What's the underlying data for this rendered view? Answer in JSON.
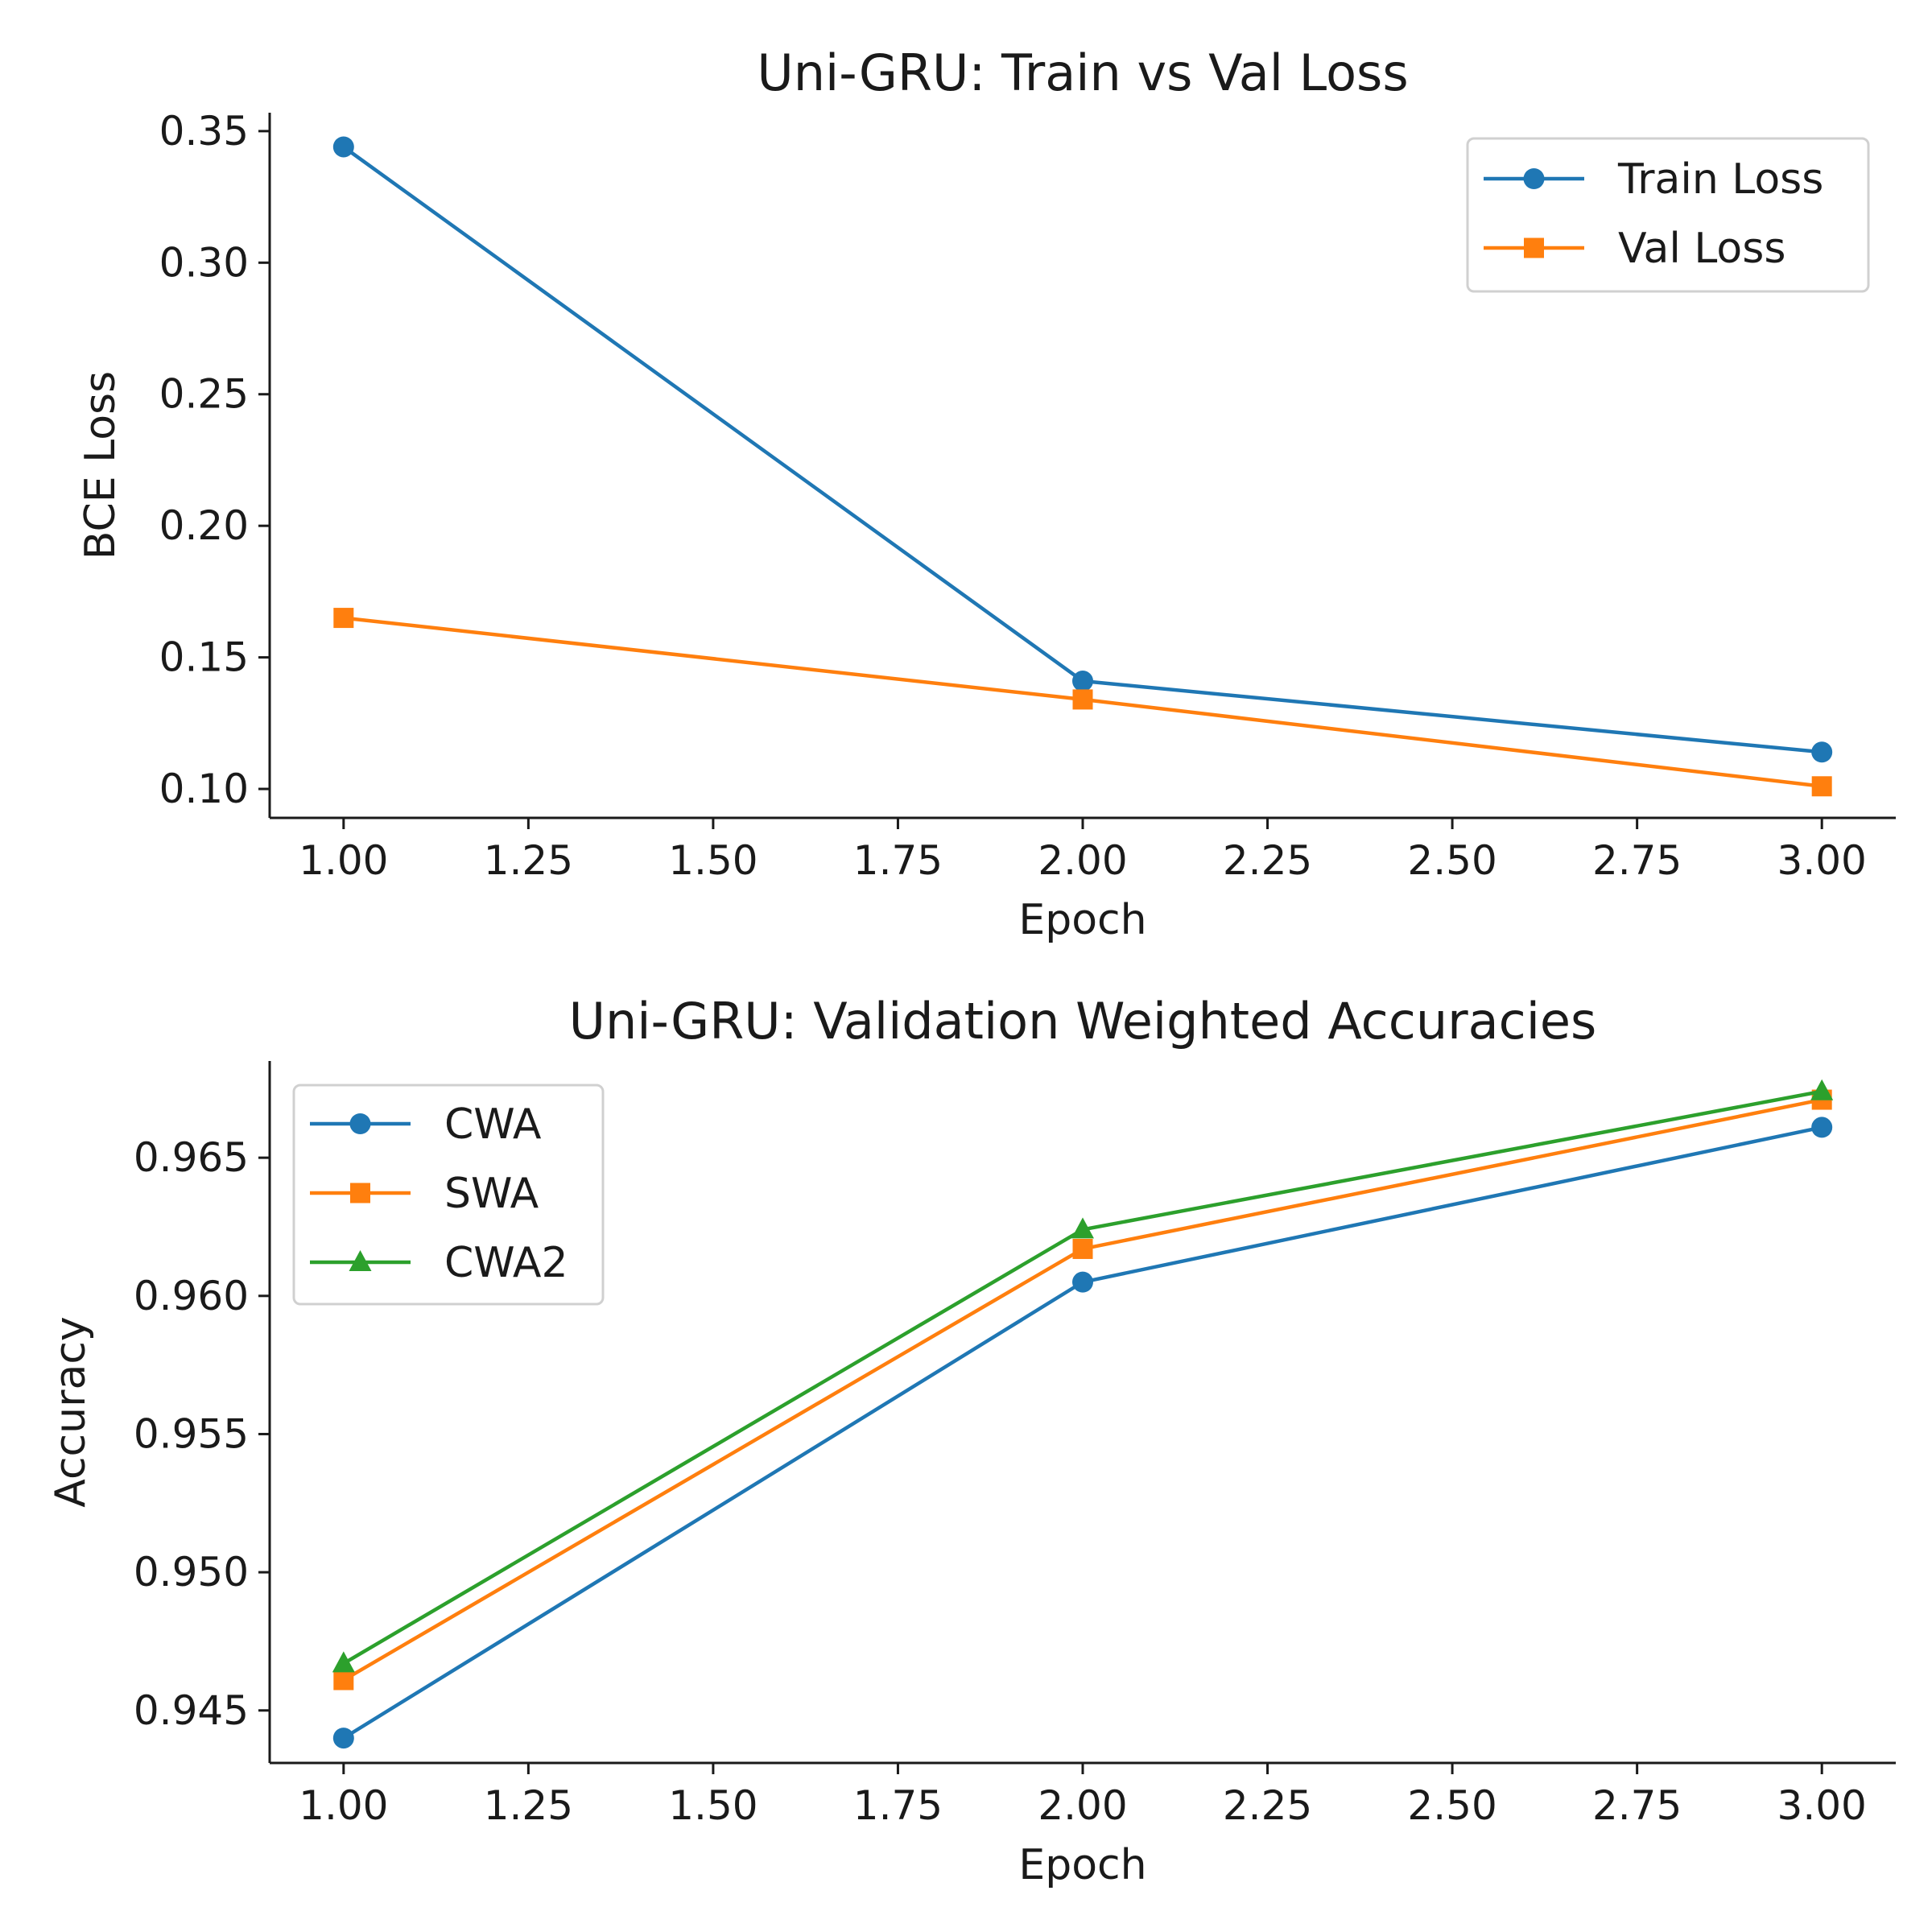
{
  "chart_data": [
    {
      "type": "line",
      "title": "Uni-GRU: Train vs Val Loss",
      "xlabel": "Epoch",
      "ylabel": "BCE Loss",
      "x": [
        1,
        2,
        3
      ],
      "xlim": [
        0.9,
        3.1
      ],
      "ylim": [
        0.089,
        0.357
      ],
      "xticks": [
        1.0,
        1.25,
        1.5,
        1.75,
        2.0,
        2.25,
        2.5,
        2.75,
        3.0
      ],
      "xtick_labels": [
        "1.00",
        "1.25",
        "1.50",
        "1.75",
        "2.00",
        "2.25",
        "2.50",
        "2.75",
        "3.00"
      ],
      "yticks": [
        0.1,
        0.15,
        0.2,
        0.25,
        0.3,
        0.35
      ],
      "ytick_labels": [
        "0.10",
        "0.15",
        "0.20",
        "0.25",
        "0.30",
        "0.35"
      ],
      "grid": false,
      "legend_position": "top-right",
      "series": [
        {
          "name": "Train Loss",
          "values": [
            0.344,
            0.141,
            0.114
          ],
          "color": "#1f77b4",
          "marker": "circle"
        },
        {
          "name": "Val Loss",
          "values": [
            0.165,
            0.134,
            0.101
          ],
          "color": "#ff7f0e",
          "marker": "square"
        }
      ]
    },
    {
      "type": "line",
      "title": "Uni-GRU: Validation Weighted Accuracies",
      "xlabel": "Epoch",
      "ylabel": "Accuracy",
      "x": [
        1,
        2,
        3
      ],
      "xlim": [
        0.9,
        3.1
      ],
      "ylim": [
        0.9431,
        0.9685
      ],
      "xticks": [
        1.0,
        1.25,
        1.5,
        1.75,
        2.0,
        2.25,
        2.5,
        2.75,
        3.0
      ],
      "xtick_labels": [
        "1.00",
        "1.25",
        "1.50",
        "1.75",
        "2.00",
        "2.25",
        "2.50",
        "2.75",
        "3.00"
      ],
      "yticks": [
        0.945,
        0.95,
        0.955,
        0.96,
        0.965
      ],
      "ytick_labels": [
        "0.945",
        "0.950",
        "0.955",
        "0.960",
        "0.965"
      ],
      "grid": false,
      "legend_position": "top-left",
      "series": [
        {
          "name": "CWA",
          "values": [
            0.944,
            0.9605,
            0.9661
          ],
          "color": "#1f77b4",
          "marker": "circle"
        },
        {
          "name": "SWA",
          "values": [
            0.9461,
            0.9617,
            0.9671
          ],
          "color": "#ff7f0e",
          "marker": "square"
        },
        {
          "name": "CWA2",
          "values": [
            0.9467,
            0.9624,
            0.9674
          ],
          "color": "#2ca02c",
          "marker": "triangle"
        }
      ]
    }
  ]
}
